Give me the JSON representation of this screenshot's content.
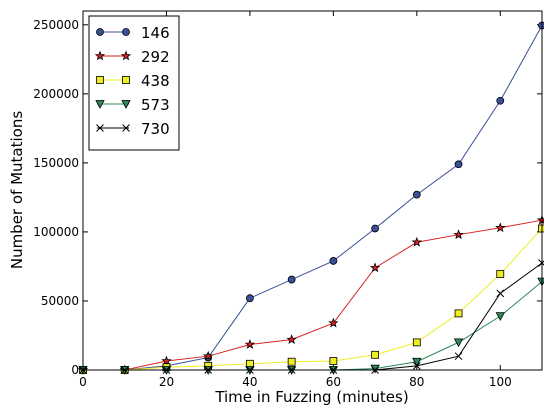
{
  "chart_data": {
    "type": "line",
    "title": "",
    "xlabel": "Time in Fuzzing (minutes)",
    "ylabel": "Number of Mutations",
    "xlim": [
      0,
      110
    ],
    "ylim": [
      0,
      260000
    ],
    "xticks": [
      0,
      20,
      40,
      60,
      80,
      100
    ],
    "yticks": [
      0,
      50000,
      100000,
      150000,
      200000,
      250000
    ],
    "x": [
      0,
      10,
      20,
      30,
      40,
      50,
      60,
      70,
      80,
      90,
      100,
      110
    ],
    "grid": false,
    "legend_position": "top-left",
    "series": [
      {
        "name": "146",
        "color": "#3a4f96",
        "marker": "circle",
        "values": [
          0,
          0,
          3000,
          9000,
          52000,
          65500,
          79000,
          102500,
          127000,
          149000,
          195000,
          249500
        ]
      },
      {
        "name": "292",
        "color": "#dd2222",
        "marker": "star",
        "values": [
          0,
          0,
          6500,
          10000,
          18500,
          22000,
          34000,
          74000,
          92500,
          98000,
          103000,
          108500
        ]
      },
      {
        "name": "438",
        "color": "#eeee22",
        "marker": "square",
        "values": [
          0,
          0,
          2000,
          3000,
          4500,
          6000,
          6500,
          11000,
          20000,
          41000,
          69500,
          102500
        ]
      },
      {
        "name": "573",
        "color": "#2a8a5a",
        "marker": "triangle-down",
        "values": [
          0,
          0,
          0,
          0,
          0,
          0,
          0,
          1000,
          6000,
          20000,
          39000,
          64000
        ]
      },
      {
        "name": "730",
        "color": "#000000",
        "marker": "x",
        "values": [
          0,
          0,
          0,
          0,
          0,
          0,
          0,
          0,
          3000,
          10000,
          55500,
          77500
        ]
      }
    ]
  }
}
